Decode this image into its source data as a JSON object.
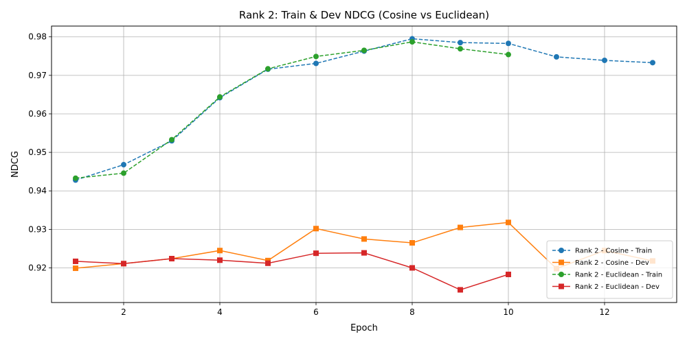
{
  "chart_data": {
    "type": "line",
    "title": "Rank 2: Train & Dev NDCG (Cosine vs Euclidean)",
    "xlabel": "Epoch",
    "ylabel": "NDCG",
    "xlim": [
      0.5,
      13.5
    ],
    "ylim": [
      0.911,
      0.9828
    ],
    "xticks": [
      2,
      4,
      6,
      8,
      10,
      12
    ],
    "yticks": [
      0.92,
      0.93,
      0.94,
      0.95,
      0.96,
      0.97,
      0.98
    ],
    "grid": true,
    "legend_position": "lower-right",
    "series": [
      {
        "name": "Rank 2 - Cosine - Train",
        "color": "#1f77b4",
        "linestyle": "dashed",
        "marker": "circle",
        "x": [
          1,
          2,
          3,
          4,
          5,
          6,
          7,
          8,
          9,
          10,
          11,
          12,
          13
        ],
        "values": [
          0.9428,
          0.9468,
          0.953,
          0.9642,
          0.9716,
          0.9731,
          0.9763,
          0.9795,
          0.9785,
          0.9783,
          0.9748,
          0.9739,
          0.9733
        ]
      },
      {
        "name": "Rank 2 - Cosine - Dev",
        "color": "#ff7f0e",
        "linestyle": "solid",
        "marker": "square",
        "x": [
          1,
          2,
          3,
          4,
          5,
          6,
          7,
          8,
          9,
          10,
          11,
          12,
          13
        ],
        "values": [
          0.9199,
          0.9211,
          0.9224,
          0.9245,
          0.9219,
          0.9302,
          0.9275,
          0.9265,
          0.9305,
          0.9318,
          0.9198,
          0.9245,
          0.9218
        ]
      },
      {
        "name": "Rank 2 - Euclidean - Train",
        "color": "#2ca02c",
        "linestyle": "dashed",
        "marker": "circle",
        "x": [
          1,
          2,
          3,
          4,
          5,
          6,
          7,
          8,
          9,
          10
        ],
        "values": [
          0.9433,
          0.9446,
          0.9533,
          0.9644,
          0.9717,
          0.9749,
          0.9765,
          0.9787,
          0.9769,
          0.9754
        ]
      },
      {
        "name": "Rank 2 - Euclidean - Dev",
        "color": "#d62728",
        "linestyle": "solid",
        "marker": "square",
        "x": [
          1,
          2,
          3,
          4,
          5,
          6,
          7,
          8,
          9,
          10
        ],
        "values": [
          0.9217,
          0.9211,
          0.9224,
          0.922,
          0.9212,
          0.9238,
          0.9239,
          0.92,
          0.9143,
          0.9183
        ]
      }
    ]
  }
}
